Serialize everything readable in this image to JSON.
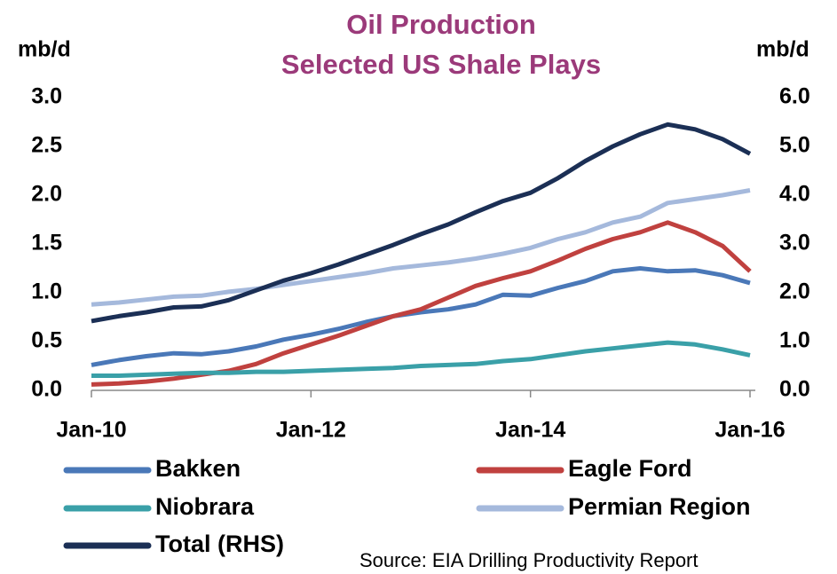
{
  "chart_data": {
    "type": "line",
    "title": [
      "Oil Production",
      "Selected US Shale Plays"
    ],
    "y_label": "mb/d",
    "y2_label": "mb/d",
    "source": "Source: EIA Drilling Productivity Report",
    "x": [
      "2010-01",
      "2010-04",
      "2010-07",
      "2010-10",
      "2011-01",
      "2011-04",
      "2011-07",
      "2011-10",
      "2012-01",
      "2012-04",
      "2012-07",
      "2012-10",
      "2013-01",
      "2013-04",
      "2013-07",
      "2013-10",
      "2014-01",
      "2014-04",
      "2014-07",
      "2014-10",
      "2015-01",
      "2015-04",
      "2015-07",
      "2015-10",
      "2016-01"
    ],
    "xlim": [
      "2010-01",
      "2016-01"
    ],
    "xticks": [
      {
        "value": "2010-01",
        "label": "Jan-10"
      },
      {
        "value": "2012-01",
        "label": "Jan-12"
      },
      {
        "value": "2014-01",
        "label": "Jan-14"
      },
      {
        "value": "2016-01",
        "label": "Jan-16"
      }
    ],
    "ylim": [
      0,
      3
    ],
    "yticks": [
      {
        "value": 0,
        "label": "0.0"
      },
      0.5,
      {
        "value": 1,
        "label": "1.0"
      },
      1.5,
      {
        "value": 2,
        "label": "2.0"
      },
      2.5,
      {
        "value": 3,
        "label": "3.0"
      }
    ],
    "y2lim": [
      0,
      6
    ],
    "y2ticks": [
      {
        "value": 0,
        "label": "0.0"
      },
      {
        "value": 1,
        "label": "1.0"
      },
      {
        "value": 2,
        "label": "2.0"
      },
      {
        "value": 3,
        "label": "3.0"
      },
      {
        "value": 4,
        "label": "4.0"
      },
      {
        "value": 5,
        "label": "5.0"
      },
      {
        "value": 6,
        "label": "6.0"
      }
    ],
    "series": [
      {
        "name": "Bakken",
        "color": "#4a78b8",
        "values": [
          0.26,
          0.31,
          0.35,
          0.38,
          0.37,
          0.4,
          0.45,
          0.52,
          0.57,
          0.63,
          0.7,
          0.76,
          0.8,
          0.83,
          0.88,
          0.98,
          0.97,
          1.05,
          1.12,
          1.22,
          1.25,
          1.22,
          1.23,
          1.18,
          1.1
        ]
      },
      {
        "name": "Eagle Ford",
        "color": "#c0413f",
        "values": [
          0.06,
          0.07,
          0.09,
          0.12,
          0.16,
          0.2,
          0.27,
          0.38,
          0.47,
          0.56,
          0.66,
          0.76,
          0.83,
          0.95,
          1.07,
          1.15,
          1.22,
          1.33,
          1.45,
          1.55,
          1.62,
          1.72,
          1.62,
          1.48,
          1.22
        ]
      },
      {
        "name": "Niobrara",
        "color": "#3aa0a8",
        "values": [
          0.15,
          0.15,
          0.16,
          0.17,
          0.18,
          0.18,
          0.19,
          0.19,
          0.2,
          0.21,
          0.22,
          0.23,
          0.25,
          0.26,
          0.27,
          0.3,
          0.32,
          0.36,
          0.4,
          0.43,
          0.46,
          0.49,
          0.47,
          0.42,
          0.36
        ]
      },
      {
        "name": "Permian Region",
        "color": "#a5b9dc",
        "values": [
          0.88,
          0.9,
          0.93,
          0.96,
          0.97,
          1.01,
          1.04,
          1.08,
          1.12,
          1.16,
          1.2,
          1.25,
          1.28,
          1.31,
          1.35,
          1.4,
          1.46,
          1.55,
          1.62,
          1.72,
          1.78,
          1.92,
          1.96,
          2.0,
          2.05
        ]
      },
      {
        "name": "Total (RHS)",
        "color": "#1b2f55",
        "axis": "y2",
        "values": [
          1.42,
          1.52,
          1.6,
          1.7,
          1.72,
          1.85,
          2.05,
          2.25,
          2.4,
          2.58,
          2.78,
          2.98,
          3.2,
          3.4,
          3.65,
          3.88,
          4.05,
          4.35,
          4.7,
          5.0,
          5.25,
          5.45,
          5.35,
          5.15,
          4.85
        ]
      }
    ]
  }
}
